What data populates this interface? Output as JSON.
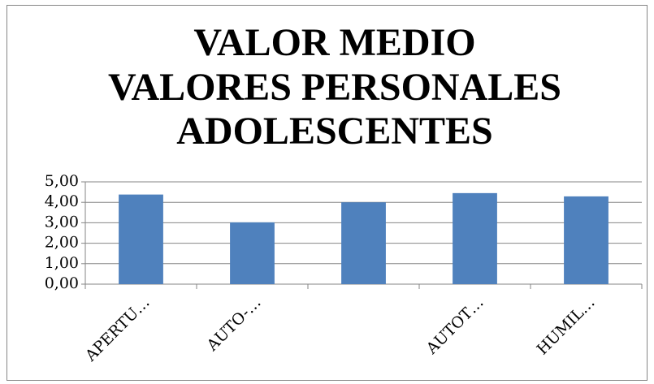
{
  "chart_data": {
    "type": "bar",
    "title": [
      "VALOR MEDIO",
      "VALORES PERSONALES",
      "ADOLESCENTES"
    ],
    "categories": [
      "APERTU…",
      "AUTO-…",
      null,
      "AUTOT…",
      "HUMIL…"
    ],
    "values": [
      4.38,
      3.02,
      4.0,
      4.45,
      4.29
    ],
    "color": "#4f81bd",
    "ylim": [
      0,
      5
    ],
    "yticks": [
      {
        "value": 0,
        "label": "0,00"
      },
      {
        "value": 1,
        "label": "1,00"
      },
      {
        "value": 2,
        "label": "2,00"
      },
      {
        "value": 3,
        "label": "3,00"
      },
      {
        "value": 4,
        "label": "4,00"
      },
      {
        "value": 5,
        "label": "5,00"
      }
    ],
    "grid": true
  }
}
